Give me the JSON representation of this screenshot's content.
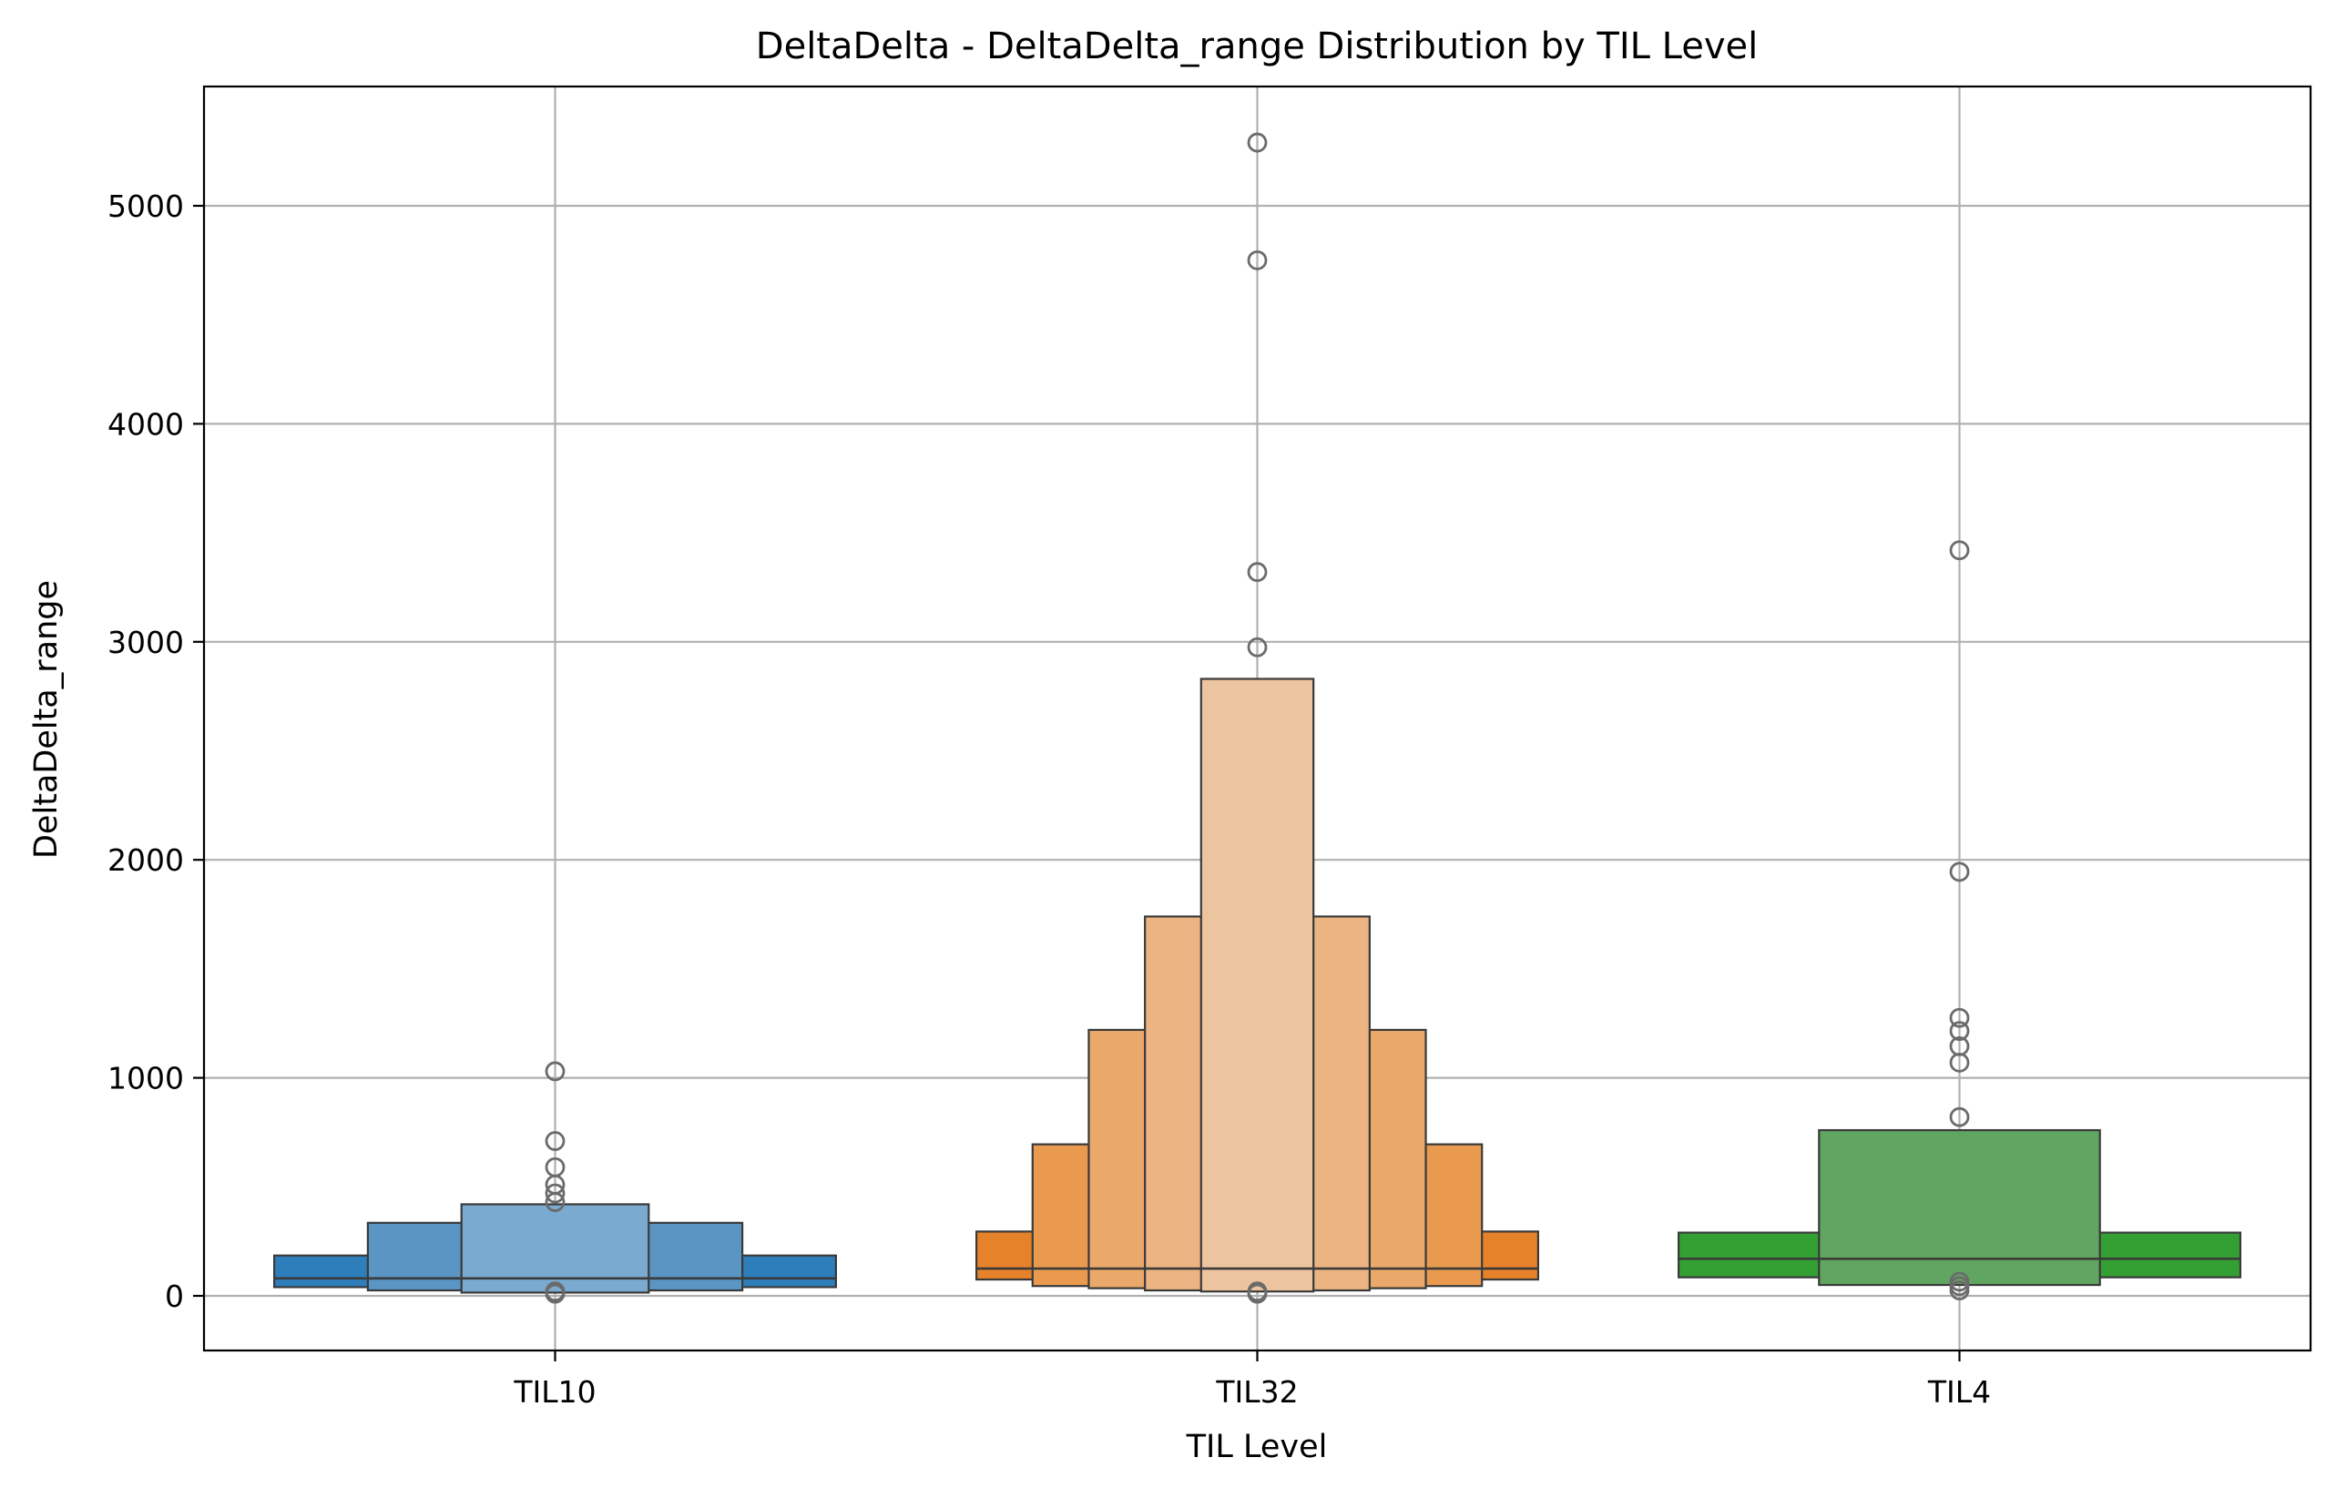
{
  "chart_data": {
    "type": "boxen",
    "title": "DeltaDelta - DeltaDelta_range Distribution by TIL Level",
    "xlabel": "TIL Level",
    "ylabel": "DeltaDelta_range",
    "ylim": [
      -260,
      5540
    ],
    "yticks": [
      0,
      1000,
      2000,
      3000,
      4000,
      5000
    ],
    "grid": true,
    "categories": [
      "TIL10",
      "TIL32",
      "TIL4"
    ],
    "series": [
      {
        "category": "TIL10",
        "color": "#1f77b4",
        "median": 80,
        "boxes": [
          {
            "low": 40,
            "high": 185,
            "fill": "#2e7ebc"
          },
          {
            "low": 25,
            "high": 335,
            "fill": "#5a95c4"
          },
          {
            "low": 15,
            "high": 420,
            "fill": "#7aaacf"
          }
        ],
        "outliers": [
          1030,
          710,
          590,
          510,
          470,
          430,
          20,
          10
        ]
      },
      {
        "category": "TIL32",
        "color": "#ff7f0e",
        "median": 125,
        "boxes": [
          {
            "low": 75,
            "high": 295,
            "fill": "#e6832a"
          },
          {
            "low": 45,
            "high": 695,
            "fill": "#e99a4e"
          },
          {
            "low": 35,
            "high": 1220,
            "fill": "#eaa96a"
          },
          {
            "low": 25,
            "high": 1740,
            "fill": "#ebb482"
          },
          {
            "low": 20,
            "high": 2830,
            "fill": "#ecc4a0"
          }
        ],
        "outliers": [
          5290,
          4750,
          3320,
          2975,
          20,
          10
        ]
      },
      {
        "category": "TIL4",
        "color": "#2ca02c",
        "median": 170,
        "boxes": [
          {
            "low": 85,
            "high": 290,
            "fill": "#34a034"
          },
          {
            "low": 50,
            "high": 760,
            "fill": "#60a660"
          }
        ],
        "outliers": [
          3420,
          1945,
          1275,
          1215,
          1145,
          1070,
          820,
          65,
          45,
          25
        ]
      }
    ]
  }
}
